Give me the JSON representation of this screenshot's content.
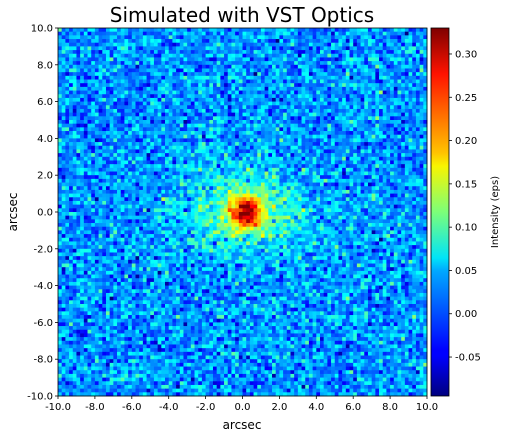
{
  "chart_data": {
    "type": "heatmap",
    "title": "Simulated with VST Optics",
    "xlabel": "arcsec",
    "ylabel": "arcsec",
    "xlim": [
      -10.0,
      10.0
    ],
    "ylim": [
      -10.0,
      10.0
    ],
    "x_ticks": [
      "-10.0",
      "-8.0",
      "-6.0",
      "-4.0",
      "-2.0",
      "0.0",
      "2.0",
      "4.0",
      "6.0",
      "8.0",
      "10.0"
    ],
    "y_ticks": [
      "-10.0",
      "-8.0",
      "-6.0",
      "-4.0",
      "-2.0",
      "0.0",
      "2.0",
      "4.0",
      "6.0",
      "8.0",
      "10.0"
    ],
    "grid": false,
    "colormap": "jet",
    "colorbar": {
      "label": "Intensity (eps)",
      "range": [
        -0.095,
        0.33
      ],
      "ticks": [
        "-0.05",
        "0.00",
        "0.05",
        "0.10",
        "0.15",
        "0.20",
        "0.25",
        "0.30"
      ],
      "tick_values": [
        -0.05,
        0.0,
        0.05,
        0.1,
        0.15,
        0.2,
        0.25,
        0.3
      ]
    },
    "source": {
      "center": [
        0.2,
        0.0
      ],
      "peak_intensity": 0.32,
      "core_sigma_arcsec": 0.6,
      "halo_sigma_arcsec": [
        2.2,
        1.6
      ],
      "halo_intensity": 0.09,
      "background_level": 0.02,
      "noise_sigma": 0.032
    }
  }
}
